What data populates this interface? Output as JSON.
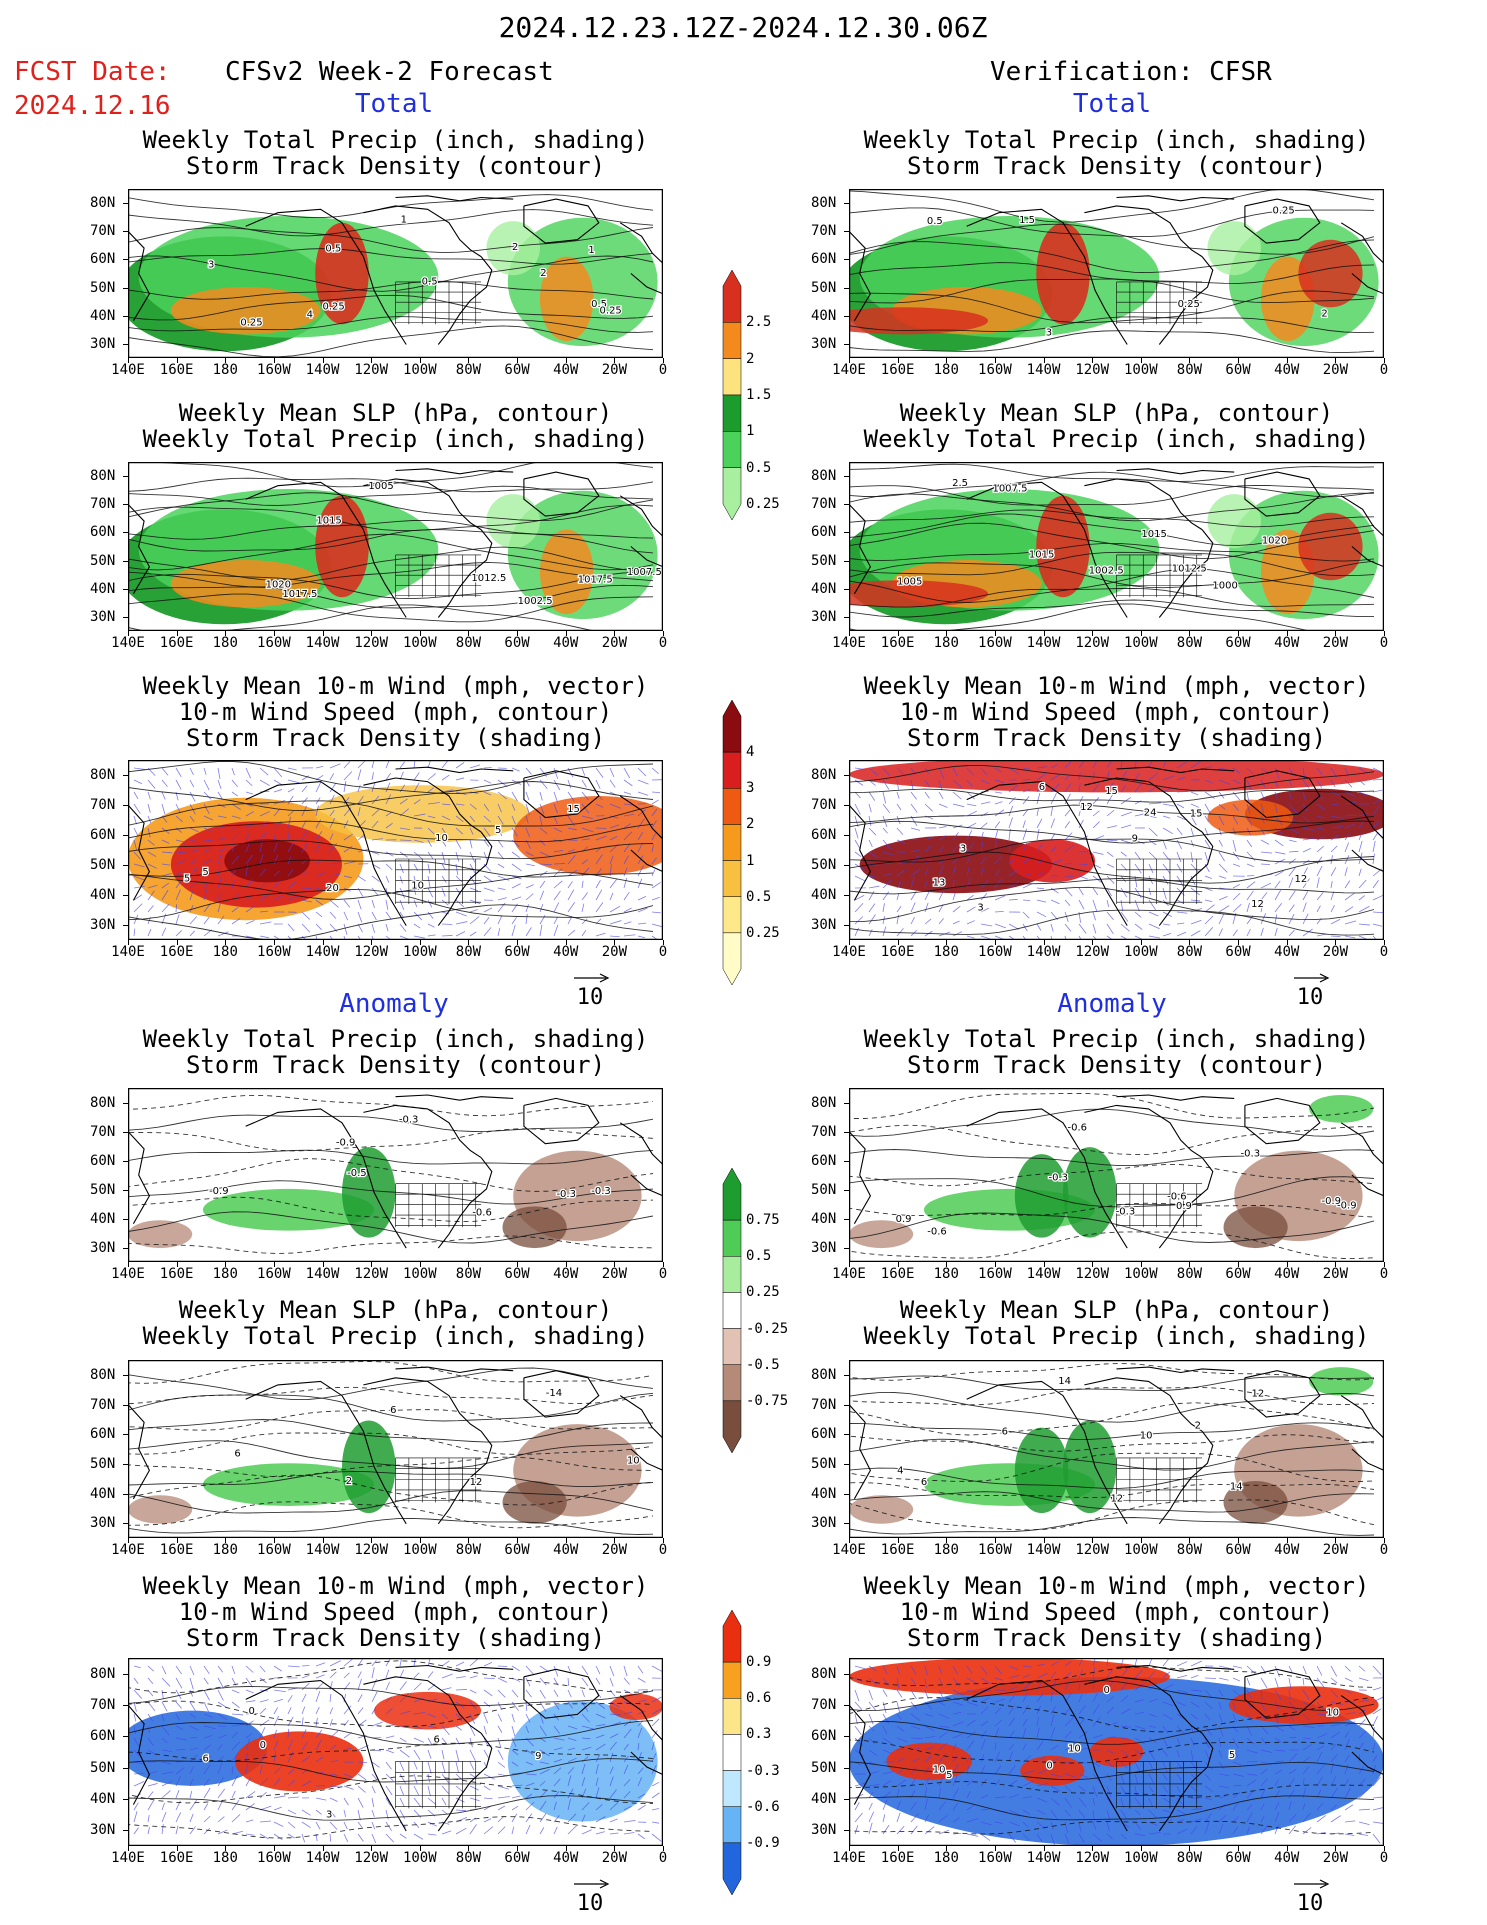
{
  "header": {
    "date_range": "2024.12.23.12Z-2024.12.30.06Z",
    "fcst_label": "FCST Date:",
    "fcst_date": "2024.12.16",
    "left_title": "CFSv2 Week-2 Forecast",
    "right_title": "Verification: CFSR"
  },
  "sections": {
    "total": "Total",
    "anomaly": "Anomaly"
  },
  "panel_titles": {
    "precip_storm": [
      "Weekly Total Precip (inch, shading)",
      "Storm Track Density (contour)"
    ],
    "slp_precip": [
      "Weekly Mean SLP (hPa, contour)",
      "Weekly Total Precip (inch, shading)"
    ],
    "wind": [
      "Weekly Mean 10-m Wind (mph, vector)",
      "10-m Wind Speed (mph, contour)",
      "Storm Track Density (shading)"
    ]
  },
  "axes": {
    "lat_labels": [
      "80N",
      "70N",
      "60N",
      "50N",
      "40N",
      "30N"
    ],
    "lon_labels": [
      "140E",
      "160E",
      "180",
      "160W",
      "140W",
      "120W",
      "100W",
      "80W",
      "60W",
      "40W",
      "20W",
      "0"
    ]
  },
  "vector_ref": "10",
  "colorbars": {
    "total_precip": {
      "labels": [
        "2.5",
        "2",
        "1.5",
        "1",
        "0.5",
        "0.25"
      ],
      "colors": [
        "#d7301f",
        "#f4891e",
        "#fde37d",
        "#1c9c2c",
        "#4ad25a",
        "#a8f0a0"
      ]
    },
    "total_storm": {
      "labels": [
        "4",
        "3",
        "2",
        "1",
        "0.5",
        "0.25"
      ],
      "colors": [
        "#8a0b10",
        "#d81e1e",
        "#ee5a12",
        "#f59a1c",
        "#f8c040",
        "#fde98a",
        "#fffcc8"
      ]
    },
    "anom_precip": {
      "labels": [
        "0.75",
        "0.5",
        "0.25",
        "-0.25",
        "-0.5",
        "-0.75"
      ],
      "colors": [
        "#1f9c30",
        "#4fcc55",
        "#a8ec9e",
        "#ffffff",
        "#e2c2b4",
        "#b58a78",
        "#7a4e3e"
      ]
    },
    "anom_storm": {
      "labels": [
        "0.9",
        "0.6",
        "0.3",
        "-0.3",
        "-0.6",
        "-0.9"
      ],
      "colors": [
        "#ea2f10",
        "#f8a020",
        "#fde58a",
        "#ffffff",
        "#bfe8ff",
        "#66b3f5",
        "#2266dd"
      ]
    }
  },
  "contour_labels": {
    "fc_total_precip": [
      "0.25",
      "1",
      "0.5",
      "0.5",
      "1",
      "4",
      "2",
      "3",
      "0.5",
      "0.25",
      "0.25",
      "2"
    ],
    "vr_total_precip": [
      "0.5",
      "0.25",
      "2",
      "3",
      "0.25",
      "1.5"
    ],
    "fc_total_slp": [
      "1020",
      "1012.5",
      "1007.5",
      "1005",
      "1017.5",
      "1015",
      "1002.5",
      "1017.5"
    ],
    "vr_total_slp": [
      "2.5",
      "1015",
      "1005",
      "1002.5",
      "1020",
      "1015",
      "1000",
      "1007.5",
      "1012.5"
    ],
    "fc_total_wind": [
      "5",
      "10",
      "5",
      "10",
      "15",
      "20",
      "5"
    ],
    "vr_total_wind": [
      "3",
      "15",
      "13",
      "9",
      "12",
      "6",
      "15",
      "3",
      "24",
      "12",
      "12"
    ],
    "fc_anom_precip": [
      "-0.9",
      "-0.3",
      "-0.3",
      "-0.5",
      "-0.3",
      "-0.9",
      "-0.6"
    ],
    "vr_anom_precip": [
      "0.9",
      "0.9",
      "-0.9",
      "-0.6",
      "-0.3",
      "-0.3",
      "-0.6",
      "-0.6",
      "-0.3",
      "-0.9"
    ],
    "fc_anom_slp": [
      "6",
      "12",
      "10",
      "6",
      "-14",
      "2"
    ],
    "vr_anom_slp": [
      "6",
      "10",
      "4",
      "12",
      "14",
      "14",
      "12",
      "6",
      "2"
    ],
    "fc_anom_wind": [
      "0",
      "6",
      "6",
      "3",
      "9",
      "0"
    ],
    "vr_anom_wind": [
      "5",
      "0",
      "10",
      "0",
      "10",
      "10",
      "5"
    ]
  }
}
